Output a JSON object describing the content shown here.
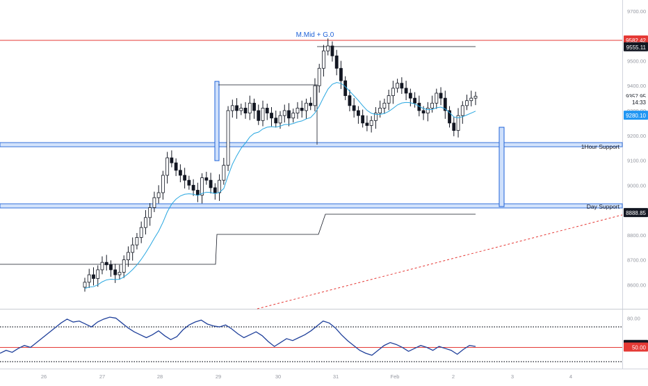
{
  "chart_data": [
    {
      "type": "candlestick",
      "title": "",
      "annotation_title": "M.Mid + G.0",
      "grid": false,
      "y_axis": {
        "side": "right",
        "range": [
          8515,
          9730
        ],
        "tick_labels": [
          "9700.00",
          "9500.00",
          "9400.00",
          "9300.00",
          "9200.00",
          "9100.00",
          "9000.00",
          "8900.00",
          "8800.00",
          "8700.00",
          "8600.00"
        ],
        "tick_values": [
          9700,
          9500,
          9400,
          9300,
          9200,
          9100,
          9000,
          8900,
          8800,
          8700,
          8600
        ]
      },
      "x_axis": {
        "tick_labels": [
          "26",
          "27",
          "28",
          "29",
          "30",
          "31",
          "Feb",
          "2",
          "3",
          "4"
        ]
      },
      "price_badges": [
        {
          "label": "9582.42",
          "value": 9582.42,
          "color": "#e53935"
        },
        {
          "label": "9555.11",
          "value": 9555.11,
          "color": "#131722"
        },
        {
          "label": "9357.95",
          "value": 9357.95,
          "color": "#ffffff"
        },
        {
          "label": "14:33",
          "value": 9334,
          "color": "#ffffff"
        },
        {
          "label": "9280.10",
          "value": 9280.1,
          "color": "#2196f3"
        },
        {
          "label": "8888.85",
          "value": 8888.85,
          "color": "#131722"
        }
      ],
      "levels": [
        {
          "name": "resistance-line",
          "value": 9582.42,
          "color": "#e53935"
        },
        {
          "name": "1hour-support",
          "label": "1Hour Support",
          "value": 9163,
          "color": "#1e62d8"
        },
        {
          "name": "day-support",
          "label": "Day Support",
          "value": 8917,
          "color": "#1e62d8"
        }
      ],
      "ohlc_closes": [
        8610,
        8640,
        8625,
        8660,
        8690,
        8680,
        8660,
        8640,
        8650,
        8700,
        8730,
        8760,
        8790,
        8830,
        8870,
        8910,
        8950,
        8970,
        9040,
        9110,
        9090,
        9060,
        9040,
        9020,
        9000,
        8980,
        8960,
        9030,
        9020,
        8990,
        8970,
        9020,
        9080,
        9300,
        9320,
        9300,
        9310,
        9290,
        9330,
        9300,
        9260,
        9310,
        9290,
        9270,
        9250,
        9280,
        9300,
        9270,
        9290,
        9310,
        9300,
        9330,
        9320,
        9400,
        9470,
        9540,
        9560,
        9520,
        9470,
        9420,
        9360,
        9320,
        9300,
        9280,
        9250,
        9240,
        9260,
        9290,
        9310,
        9330,
        9360,
        9390,
        9410,
        9390,
        9370,
        9350,
        9330,
        9300,
        9290,
        9310,
        9330,
        9370,
        9350,
        9300,
        9250,
        9220,
        9280,
        9320,
        9340,
        9350,
        9357.95
      ],
      "ema_line": {
        "color": "#26a6e0",
        "last": 9280.1
      },
      "rsi_panel": {
        "tick_labels": [
          "80.00",
          "50.00"
        ],
        "tick_values": [
          80,
          50
        ],
        "range": [
          34,
          86
        ],
        "badges": [
          {
            "label": "52.73",
            "value": 52.73,
            "color": "#131722"
          },
          {
            "label": "50.00",
            "value": 50,
            "color": "#e53935"
          }
        ],
        "values": [
          44,
          47,
          45,
          49,
          52,
          50,
          55,
          60,
          65,
          70,
          75,
          79,
          76,
          77,
          74,
          71,
          76,
          79,
          81,
          80,
          75,
          70,
          66,
          63,
          60,
          63,
          67,
          62,
          58,
          61,
          68,
          73,
          76,
          78,
          74,
          72,
          71,
          73,
          69,
          64,
          60,
          63,
          66,
          62,
          56,
          51,
          55,
          59,
          57,
          60,
          63,
          67,
          72,
          77,
          75,
          70,
          63,
          57,
          52,
          47,
          44,
          42,
          47,
          52,
          55,
          53,
          50,
          46,
          49,
          52,
          50,
          47,
          51,
          49,
          47,
          43,
          48,
          52,
          51
        ]
      }
    }
  ]
}
